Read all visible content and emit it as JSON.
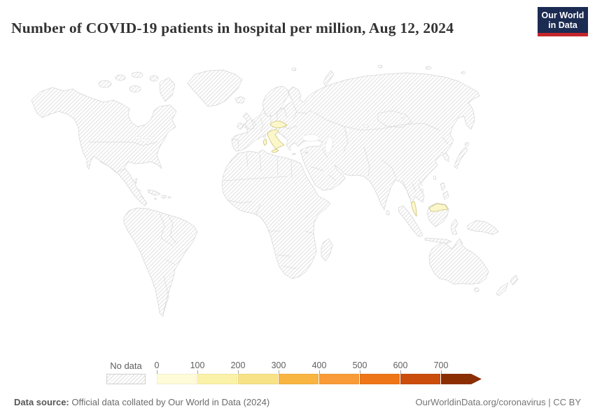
{
  "header": {
    "title": "Number of COVID-19 patients in hospital per million, Aug 12, 2024",
    "logo": {
      "line1": "Our World",
      "line2": "in Data",
      "bg_color": "#1b2b51",
      "bar_color": "#c5262c"
    }
  },
  "map": {
    "no_data_style": "diagonal-hatch",
    "highlight_fill": "#fbf7cb",
    "highlight_stroke": "#cfc178",
    "hatch_line_color": "#e1e1e1",
    "border_color": "#d4d4d4",
    "highlighted_regions": [
      {
        "name": "Italy",
        "bin": "0-100"
      },
      {
        "name": "Czechia",
        "bin": "0-100"
      },
      {
        "name": "Slovakia",
        "bin": "0-100"
      },
      {
        "name": "Malaysia",
        "bin": "0-100"
      }
    ]
  },
  "legend": {
    "no_data_label": "No data",
    "ticks": [
      "0",
      "100",
      "200",
      "300",
      "400",
      "500",
      "600",
      "700"
    ],
    "bin_colors": [
      "#fefbd8",
      "#fbf2a9",
      "#f8e287",
      "#f9b541",
      "#f99b38",
      "#ee7518",
      "#cb4d0c",
      "#8b2e04"
    ],
    "open_ended_arrow": true
  },
  "footer": {
    "source_label": "Data source:",
    "source_text": "Official data collated by Our World in Data (2024)",
    "link_text": "OurWorldinData.org/coronavirus | CC BY"
  },
  "chart_data": {
    "type": "heatmap",
    "subtype": "world-choropleth",
    "title": "Number of COVID-19 patients in hospital per million, Aug 12, 2024",
    "date": "Aug 12, 2024",
    "unit": "COVID-19 patients in hospital per million people",
    "legend_bins": [
      {
        "range": "0-100",
        "color": "#fefbd8"
      },
      {
        "range": "100-200",
        "color": "#fbf2a9"
      },
      {
        "range": "200-300",
        "color": "#f8e287"
      },
      {
        "range": "300-400",
        "color": "#f9b541"
      },
      {
        "range": "400-500",
        "color": "#f99b38"
      },
      {
        "range": "500-600",
        "color": "#ee7518"
      },
      {
        "range": "600-700",
        "color": "#cb4d0c"
      },
      {
        "range": "700+",
        "color": "#8b2e04"
      }
    ],
    "values": [
      {
        "region": "Italy",
        "bin": "0-100"
      },
      {
        "region": "Czechia",
        "bin": "0-100"
      },
      {
        "region": "Slovakia",
        "bin": "0-100"
      },
      {
        "region": "Malaysia",
        "bin": "0-100"
      }
    ],
    "all_other_regions": "No data",
    "legend_position": "bottom"
  }
}
